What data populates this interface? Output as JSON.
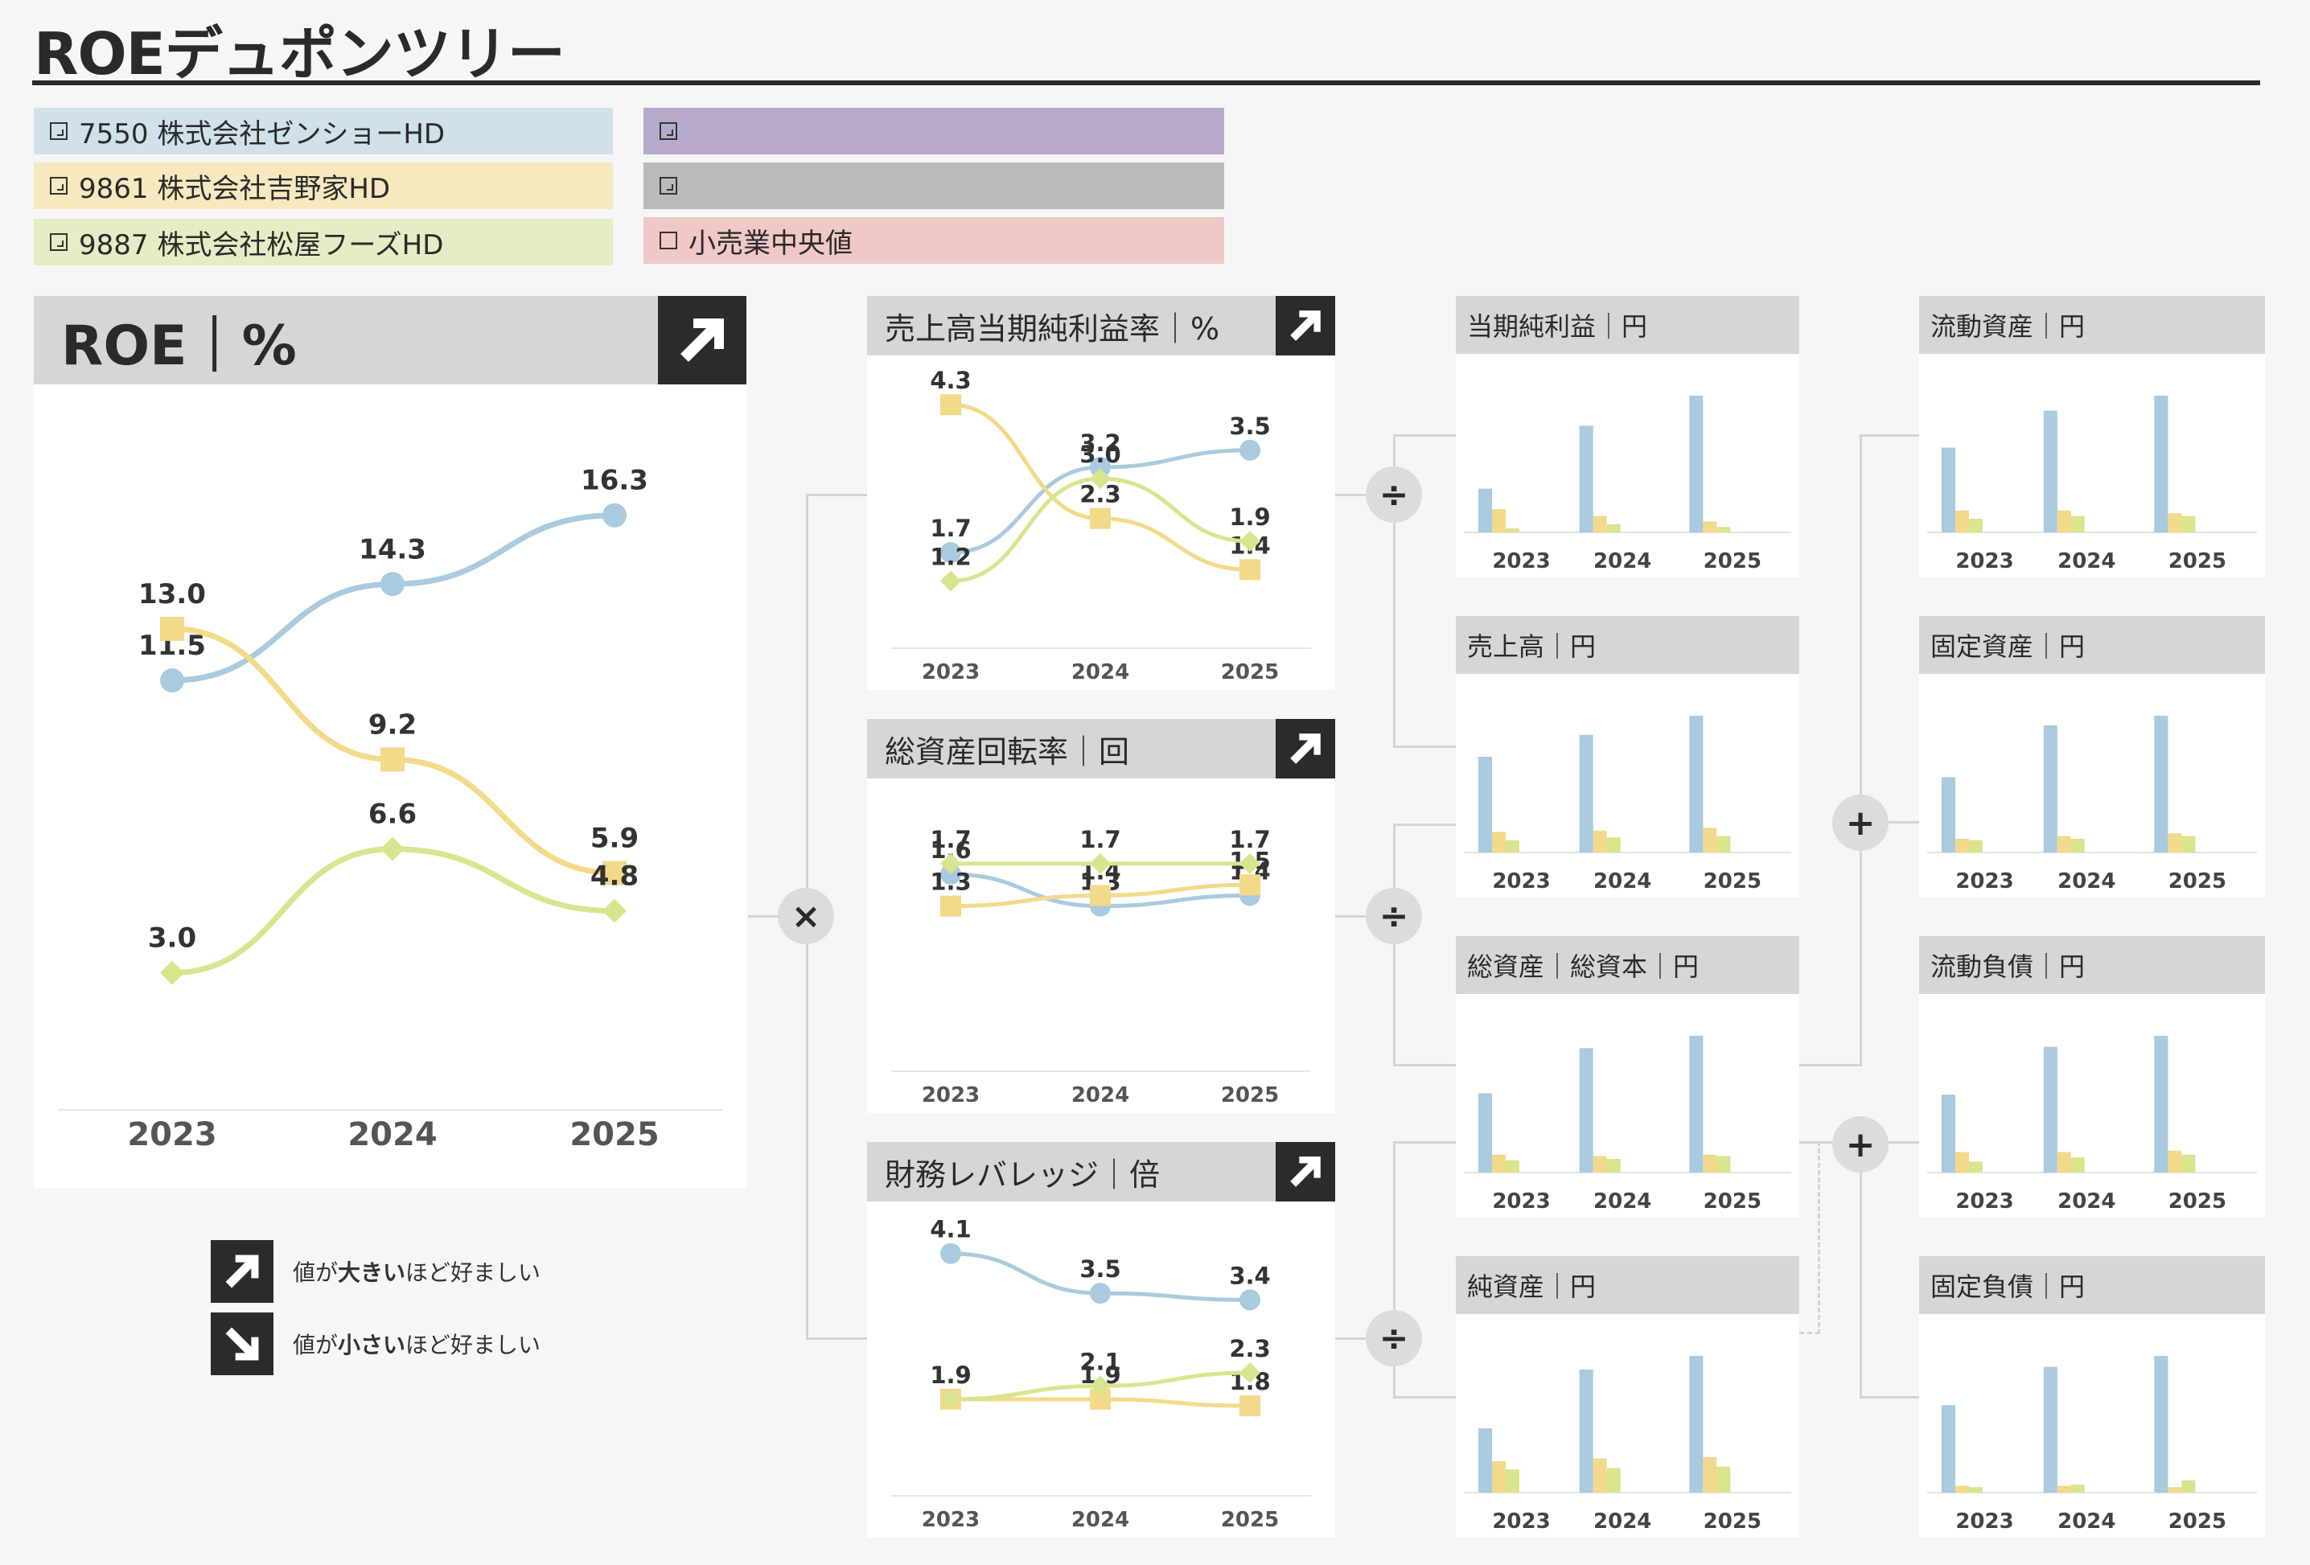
{
  "page": {
    "title": "ROEデュポンツリー"
  },
  "colors": {
    "series": [
      "#a9cadf",
      "#f3d98a",
      "#d9e48f"
    ],
    "legend_bg": [
      "#d0e1ea",
      "#f6e9bf",
      "#e6ecc4",
      "#b7a9cb",
      "#bababa",
      "#efc8c7"
    ]
  },
  "legend": {
    "items": [
      {
        "label": "7550 株式会社ゼンショーHD",
        "checked": true
      },
      {
        "label": "9861 株式会社吉野家HD",
        "checked": true
      },
      {
        "label": "9887 株式会社松屋フーズHD",
        "checked": true
      },
      {
        "label": "",
        "checked": true
      },
      {
        "label": "",
        "checked": true
      },
      {
        "label": "小売業中央値",
        "checked": false
      }
    ]
  },
  "direction_legend": {
    "up": {
      "pre": "値が",
      "bold": "大きい",
      "post": "ほど好ましい",
      "icon": "arrow-up-right-icon"
    },
    "down": {
      "pre": "値が",
      "bold": "小さい",
      "post": "ほど好ましい",
      "icon": "arrow-down-right-icon"
    }
  },
  "operators": {
    "multiply": "×",
    "divide": "÷",
    "plus": "+"
  },
  "chart_data": [
    {
      "id": "roe",
      "type": "line",
      "title": "ROE｜%",
      "direction": "up",
      "x": [
        "2023",
        "2024",
        "2025"
      ],
      "ylim": [
        0,
        18
      ],
      "series": [
        {
          "values": [
            11.5,
            14.3,
            16.3
          ],
          "labels": [
            "11.5",
            "14.3",
            "16.3"
          ],
          "marker": "circle"
        },
        {
          "values": [
            13.0,
            9.2,
            5.9
          ],
          "labels": [
            "13.0",
            "9.2",
            "5.9"
          ],
          "marker": "square"
        },
        {
          "values": [
            3.0,
            6.6,
            4.8
          ],
          "labels": [
            "3.0",
            "6.6",
            "4.8"
          ],
          "marker": "diamond"
        }
      ]
    },
    {
      "id": "margin",
      "type": "line",
      "title": "売上高当期純利益率｜%",
      "direction": "up",
      "x": [
        "2023",
        "2024",
        "2025"
      ],
      "ylim": [
        0.5,
        4.6
      ],
      "series": [
        {
          "values": [
            1.7,
            3.2,
            3.5
          ],
          "labels": [
            "1.7",
            "3.2",
            "3.5"
          ],
          "marker": "circle"
        },
        {
          "values": [
            4.3,
            2.3,
            1.4
          ],
          "labels": [
            "4.3",
            "2.3",
            "1.4"
          ],
          "marker": "square"
        },
        {
          "values": [
            1.2,
            3.0,
            1.9
          ],
          "labels": [
            "1.2",
            "3.0",
            "1.9"
          ],
          "marker": "diamond"
        }
      ]
    },
    {
      "id": "turnover",
      "type": "line",
      "title": "総資産回転率｜回",
      "direction": "up",
      "x": [
        "2023",
        "2024",
        "2025"
      ],
      "ylim": [
        0,
        2.2
      ],
      "series": [
        {
          "values": [
            1.6,
            1.3,
            1.4
          ],
          "labels": [
            "1.6",
            "1.3",
            "1.4"
          ],
          "marker": "circle"
        },
        {
          "values": [
            1.3,
            1.4,
            1.5
          ],
          "labels": [
            "1.3",
            "1.4",
            "1.5"
          ],
          "marker": "square"
        },
        {
          "values": [
            1.7,
            1.7,
            1.7
          ],
          "labels": [
            "1.7",
            "1.7",
            "1.7"
          ],
          "marker": "diamond"
        }
      ]
    },
    {
      "id": "leverage",
      "type": "line",
      "title": "財務レバレッジ｜倍",
      "direction": "up",
      "x": [
        "2023",
        "2024",
        "2025"
      ],
      "ylim": [
        1.0,
        4.4
      ],
      "series": [
        {
          "values": [
            4.1,
            3.5,
            3.4
          ],
          "labels": [
            "4.1",
            "3.5",
            "3.4"
          ],
          "marker": "circle"
        },
        {
          "values": [
            1.9,
            1.9,
            1.8
          ],
          "labels": [
            "1.9",
            "1.9",
            "1.8"
          ],
          "marker": "square"
        },
        {
          "values": [
            1.9,
            2.1,
            2.3
          ],
          "labels": [
            "1.9",
            "2.1",
            "2.3"
          ],
          "marker": "diamond"
        }
      ]
    },
    {
      "id": "net_income",
      "type": "bar",
      "title": "当期純利益｜円",
      "x": [
        "2023",
        "2024",
        "2025"
      ],
      "series": [
        {
          "values": [
            0.32,
            0.78,
            1.0
          ]
        },
        {
          "values": [
            0.17,
            0.12,
            0.08
          ]
        },
        {
          "values": [
            0.03,
            0.06,
            0.04
          ]
        }
      ]
    },
    {
      "id": "sales",
      "type": "bar",
      "title": "売上高｜円",
      "x": [
        "2023",
        "2024",
        "2025"
      ],
      "series": [
        {
          "values": [
            0.7,
            0.86,
            1.0
          ]
        },
        {
          "values": [
            0.15,
            0.16,
            0.18
          ]
        },
        {
          "values": [
            0.09,
            0.11,
            0.12
          ]
        }
      ]
    },
    {
      "id": "assets_equity",
      "type": "bar",
      "title": "総資産｜総資本｜円",
      "x": [
        "2023",
        "2024",
        "2025"
      ],
      "series": [
        {
          "values": [
            0.58,
            0.91,
            1.0
          ]
        },
        {
          "values": [
            0.13,
            0.12,
            0.13
          ]
        },
        {
          "values": [
            0.09,
            0.1,
            0.12
          ]
        }
      ]
    },
    {
      "id": "net_assets",
      "type": "bar",
      "title": "純資産｜円",
      "x": [
        "2023",
        "2024",
        "2025"
      ],
      "series": [
        {
          "values": [
            0.47,
            0.9,
            1.0
          ]
        },
        {
          "values": [
            0.23,
            0.25,
            0.26
          ]
        },
        {
          "values": [
            0.17,
            0.18,
            0.19
          ]
        }
      ]
    },
    {
      "id": "current_assets",
      "type": "bar",
      "title": "流動資産｜円",
      "x": [
        "2023",
        "2024",
        "2025"
      ],
      "series": [
        {
          "values": [
            0.62,
            0.89,
            1.0
          ]
        },
        {
          "values": [
            0.16,
            0.16,
            0.14
          ]
        },
        {
          "values": [
            0.1,
            0.12,
            0.12
          ]
        }
      ]
    },
    {
      "id": "fixed_assets",
      "type": "bar",
      "title": "固定資産｜円",
      "x": [
        "2023",
        "2024",
        "2025"
      ],
      "series": [
        {
          "values": [
            0.55,
            0.93,
            1.0
          ]
        },
        {
          "values": [
            0.1,
            0.12,
            0.14
          ]
        },
        {
          "values": [
            0.09,
            0.1,
            0.12
          ]
        }
      ]
    },
    {
      "id": "current_liabilities",
      "type": "bar",
      "title": "流動負債｜円",
      "x": [
        "2023",
        "2024",
        "2025"
      ],
      "series": [
        {
          "values": [
            0.57,
            0.92,
            1.0
          ]
        },
        {
          "values": [
            0.15,
            0.15,
            0.16
          ]
        },
        {
          "values": [
            0.08,
            0.11,
            0.13
          ]
        }
      ]
    },
    {
      "id": "fixed_liabilities",
      "type": "bar",
      "title": "固定負債｜円",
      "x": [
        "2023",
        "2024",
        "2025"
      ],
      "series": [
        {
          "values": [
            0.64,
            0.92,
            1.0
          ]
        },
        {
          "values": [
            0.05,
            0.05,
            0.04
          ]
        },
        {
          "values": [
            0.04,
            0.06,
            0.09
          ]
        }
      ]
    }
  ]
}
